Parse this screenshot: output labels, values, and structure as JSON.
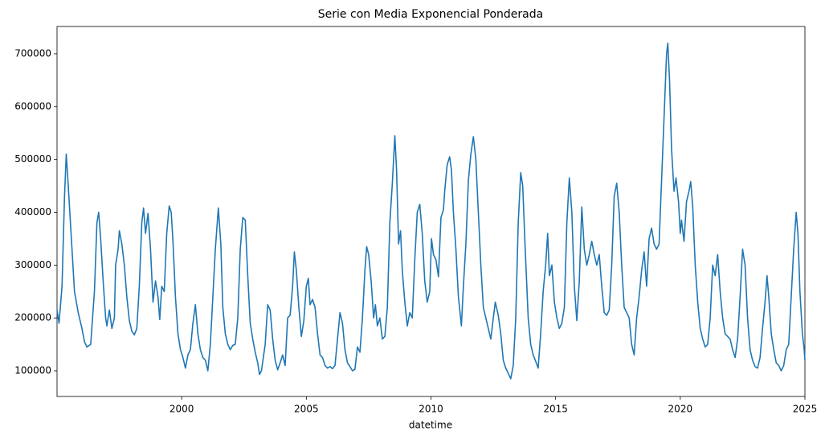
{
  "chart_data": {
    "type": "line",
    "title": "Serie con Media Exponencial Ponderada",
    "x_label": "datetime",
    "color": "#1f77b4",
    "xlim": [
      1995,
      2025
    ],
    "xticks": [
      2000,
      2005,
      2010,
      2015,
      2020,
      2025
    ],
    "ylim": [
      51400,
      751600
    ],
    "yticks": [
      100000,
      200000,
      300000,
      400000,
      500000,
      600000,
      700000
    ],
    "x": [
      1995.0,
      1995.08,
      1995.2,
      1995.3,
      1995.37,
      1995.45,
      1995.55,
      1995.7,
      1995.85,
      1996.0,
      1996.1,
      1996.2,
      1996.35,
      1996.5,
      1996.6,
      1996.67,
      1996.75,
      1996.85,
      1996.95,
      1997.0,
      1997.1,
      1997.2,
      1997.3,
      1997.35,
      1997.45,
      1997.5,
      1997.6,
      1997.7,
      1997.8,
      1997.9,
      1998.0,
      1998.1,
      1998.2,
      1998.3,
      1998.4,
      1998.47,
      1998.55,
      1998.65,
      1998.75,
      1998.85,
      1998.95,
      1999.05,
      1999.12,
      1999.2,
      1999.3,
      1999.4,
      1999.5,
      1999.58,
      1999.65,
      1999.75,
      1999.85,
      1999.95,
      2000.05,
      2000.15,
      2000.25,
      2000.35,
      2000.45,
      2000.55,
      2000.65,
      2000.75,
      2000.85,
      2000.95,
      2001.05,
      2001.15,
      2001.25,
      2001.35,
      2001.47,
      2001.57,
      2001.65,
      2001.75,
      2001.85,
      2001.95,
      2002.05,
      2002.15,
      2002.25,
      2002.35,
      2002.45,
      2002.55,
      2002.65,
      2002.75,
      2002.85,
      2002.95,
      2003.05,
      2003.12,
      2003.2,
      2003.35,
      2003.45,
      2003.55,
      2003.65,
      2003.75,
      2003.85,
      2003.95,
      2004.05,
      2004.15,
      2004.25,
      2004.35,
      2004.45,
      2004.52,
      2004.6,
      2004.7,
      2004.8,
      2004.9,
      2005.0,
      2005.08,
      2005.15,
      2005.25,
      2005.35,
      2005.45,
      2005.55,
      2005.65,
      2005.75,
      2005.85,
      2005.95,
      2006.05,
      2006.15,
      2006.25,
      2006.35,
      2006.45,
      2006.55,
      2006.65,
      2006.75,
      2006.85,
      2006.95,
      2007.05,
      2007.15,
      2007.25,
      2007.35,
      2007.42,
      2007.5,
      2007.6,
      2007.7,
      2007.77,
      2007.85,
      2007.95,
      2008.05,
      2008.15,
      2008.25,
      2008.35,
      2008.45,
      2008.55,
      2008.62,
      2008.7,
      2008.78,
      2008.85,
      2008.95,
      2009.05,
      2009.15,
      2009.25,
      2009.35,
      2009.45,
      2009.55,
      2009.65,
      2009.75,
      2009.85,
      2009.95,
      2010.02,
      2010.1,
      2010.2,
      2010.3,
      2010.4,
      2010.5,
      2010.55,
      2010.65,
      2010.75,
      2010.82,
      2010.9,
      2011.0,
      2011.1,
      2011.22,
      2011.3,
      2011.4,
      2011.5,
      2011.6,
      2011.7,
      2011.8,
      2011.9,
      2012.0,
      2012.1,
      2012.2,
      2012.3,
      2012.4,
      2012.5,
      2012.58,
      2012.7,
      2012.8,
      2012.9,
      2013.0,
      2013.1,
      2013.2,
      2013.3,
      2013.4,
      2013.5,
      2013.6,
      2013.68,
      2013.78,
      2013.9,
      2014.0,
      2014.1,
      2014.2,
      2014.3,
      2014.4,
      2014.5,
      2014.6,
      2014.68,
      2014.75,
      2014.85,
      2014.95,
      2015.05,
      2015.15,
      2015.25,
      2015.35,
      2015.45,
      2015.55,
      2015.65,
      2015.75,
      2015.85,
      2015.95,
      2016.05,
      2016.15,
      2016.25,
      2016.35,
      2016.45,
      2016.55,
      2016.65,
      2016.75,
      2016.85,
      2016.95,
      2017.05,
      2017.15,
      2017.25,
      2017.35,
      2017.45,
      2017.55,
      2017.65,
      2017.75,
      2017.85,
      2017.95,
      2018.05,
      2018.15,
      2018.25,
      2018.35,
      2018.45,
      2018.55,
      2018.65,
      2018.75,
      2018.85,
      2018.95,
      2019.05,
      2019.15,
      2019.25,
      2019.35,
      2019.45,
      2019.5,
      2019.57,
      2019.65,
      2019.75,
      2019.83,
      2019.93,
      2020.0,
      2020.05,
      2020.15,
      2020.25,
      2020.35,
      2020.42,
      2020.5,
      2020.6,
      2020.7,
      2020.8,
      2020.9,
      2021.0,
      2021.1,
      2021.2,
      2021.3,
      2021.4,
      2021.5,
      2021.6,
      2021.7,
      2021.8,
      2021.9,
      2022.0,
      2022.1,
      2022.2,
      2022.3,
      2022.4,
      2022.5,
      2022.6,
      2022.7,
      2022.8,
      2022.9,
      2023.0,
      2023.1,
      2023.2,
      2023.3,
      2023.4,
      2023.48,
      2023.55,
      2023.65,
      2023.75,
      2023.85,
      2023.95,
      2024.05,
      2024.15,
      2024.25,
      2024.35,
      2024.45,
      2024.55,
      2024.65,
      2024.72,
      2024.8,
      2024.9,
      2024.97,
      2025.0
    ],
    "values": [
      215000,
      190000,
      260000,
      430000,
      510000,
      450000,
      370000,
      250000,
      210000,
      180000,
      155000,
      145000,
      150000,
      250000,
      380000,
      400000,
      350000,
      270000,
      200000,
      185000,
      215000,
      180000,
      200000,
      300000,
      330000,
      365000,
      340000,
      300000,
      240000,
      195000,
      175000,
      168000,
      180000,
      260000,
      380000,
      408000,
      360000,
      398000,
      330000,
      230000,
      270000,
      240000,
      197000,
      260000,
      250000,
      360000,
      412000,
      400000,
      345000,
      240000,
      170000,
      140000,
      125000,
      105000,
      130000,
      140000,
      190000,
      225000,
      170000,
      140000,
      125000,
      120000,
      100000,
      150000,
      240000,
      330000,
      408000,
      340000,
      220000,
      170000,
      150000,
      140000,
      148000,
      150000,
      200000,
      330000,
      390000,
      385000,
      280000,
      190000,
      160000,
      135000,
      115000,
      93000,
      100000,
      150000,
      225000,
      215000,
      160000,
      120000,
      102000,
      115000,
      130000,
      110000,
      200000,
      205000,
      260000,
      325000,
      290000,
      220000,
      165000,
      195000,
      260000,
      275000,
      225000,
      235000,
      220000,
      170000,
      130000,
      125000,
      110000,
      105000,
      108000,
      104000,
      110000,
      160000,
      210000,
      190000,
      140000,
      115000,
      108000,
      100000,
      103000,
      145000,
      135000,
      200000,
      290000,
      335000,
      320000,
      270000,
      200000,
      225000,
      185000,
      200000,
      160000,
      165000,
      220000,
      380000,
      455000,
      545000,
      480000,
      340000,
      365000,
      290000,
      230000,
      185000,
      210000,
      200000,
      310000,
      400000,
      415000,
      360000,
      270000,
      230000,
      250000,
      350000,
      320000,
      310000,
      278000,
      390000,
      405000,
      440000,
      490000,
      505000,
      480000,
      400000,
      330000,
      240000,
      185000,
      260000,
      340000,
      460000,
      510000,
      543000,
      500000,
      400000,
      300000,
      220000,
      200000,
      180000,
      160000,
      200000,
      230000,
      205000,
      170000,
      120000,
      105000,
      95000,
      85000,
      110000,
      200000,
      380000,
      475000,
      450000,
      330000,
      200000,
      150000,
      130000,
      118000,
      105000,
      170000,
      250000,
      300000,
      360000,
      280000,
      300000,
      230000,
      200000,
      180000,
      190000,
      220000,
      380000,
      465000,
      400000,
      260000,
      195000,
      270000,
      410000,
      330000,
      300000,
      320000,
      345000,
      320000,
      300000,
      320000,
      260000,
      210000,
      205000,
      215000,
      300000,
      430000,
      455000,
      400000,
      300000,
      220000,
      210000,
      200000,
      150000,
      130000,
      200000,
      240000,
      290000,
      325000,
      260000,
      350000,
      370000,
      340000,
      330000,
      340000,
      460000,
      580000,
      700000,
      720000,
      650000,
      520000,
      440000,
      465000,
      420000,
      360000,
      385000,
      345000,
      420000,
      440000,
      458000,
      410000,
      300000,
      230000,
      180000,
      160000,
      145000,
      150000,
      200000,
      300000,
      280000,
      320000,
      250000,
      200000,
      170000,
      165000,
      160000,
      140000,
      125000,
      160000,
      240000,
      330000,
      300000,
      200000,
      140000,
      120000,
      108000,
      105000,
      125000,
      180000,
      230000,
      280000,
      240000,
      170000,
      140000,
      115000,
      110000,
      100000,
      110000,
      140000,
      150000,
      240000,
      330000,
      400000,
      360000,
      250000,
      170000,
      140000,
      120000
    ]
  }
}
